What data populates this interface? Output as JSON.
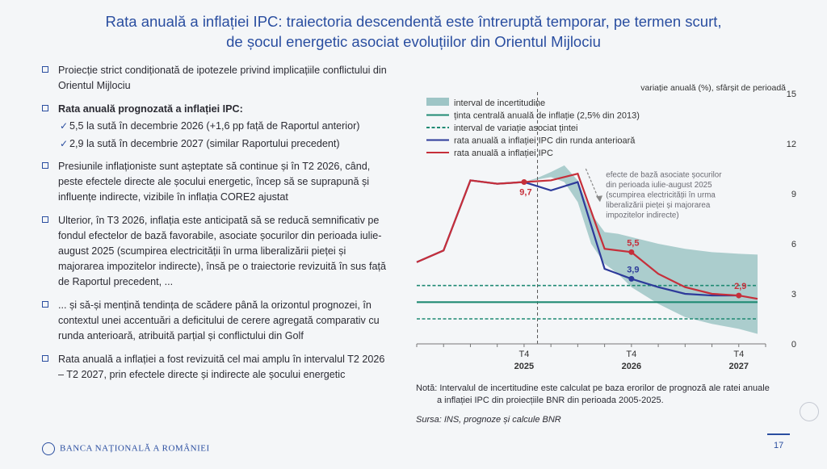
{
  "title": {
    "line1": "Rata anuală a inflației IPC: traiectoria descendentă este întreruptă temporar, pe termen scurt,",
    "line2": "de șocul energetic asociat evoluțiilor din Orientul Mijlociu"
  },
  "bullets": {
    "b1": "Proiecție strict condiționată de ipotezele privind implicațiile conflictului din Orientul Mijlociu",
    "b2": "Rata anuală prognozată a inflației IPC:",
    "b2_sub1": "5,5 la sută în decembrie 2026 (+1,6 pp față de Raportul anterior)",
    "b2_sub2": "2,9 la sută în decembrie 2027 (similar Raportului precedent)",
    "b3": "Presiunile inflaționiste sunt așteptate să continue și în T2 2026, când, peste efectele directe ale șocului energetic, încep să se suprapună și influențe indirecte, vizibile în inflația CORE2 ajustat",
    "b4": "Ulterior, în T3 2026, inflația este anticipată să se reducă semnificativ pe fondul efectelor de bază favorabile, asociate șocurilor din perioada iulie-august 2025 (scumpirea electricității în urma liberalizării pieței și majorarea impozitelor indirecte), însă pe o traiectorie revizuită în sus față de Raportul precedent, ...",
    "b5": "... și să-și mențină tendința de scădere până la orizontul prognozei, în contextul unei accentuări a deficitului de cerere agregată comparativ cu runda anterioară, atribuită parțial și conflictului din Golf",
    "b6": "Rata anuală a inflației a fost revizuită cel mai amplu în intervalul T2 2026 – T2 2027, prin efectele directe și indirecte ale șocului energetic"
  },
  "chart_data": {
    "type": "line",
    "ylabel": "variație anuală (%), sfârșit de perioadă",
    "ylim": [
      0,
      15
    ],
    "yticks": [
      0,
      3,
      6,
      9,
      12,
      15
    ],
    "x_tick_labels": [
      {
        "top": "T4",
        "bottom": "2025",
        "q": 4
      },
      {
        "top": "T4",
        "bottom": "2026",
        "q": 8
      },
      {
        "top": "T4",
        "bottom": "2027",
        "q": 12
      }
    ],
    "x_range_quarters": [
      0,
      13
    ],
    "forecast_start_q": 4,
    "target": 2.5,
    "target_band": [
      1.5,
      3.5
    ],
    "legend": {
      "uncertainty": "interval de incertitudine",
      "target": "ținta centrală anuală de inflație (2,5% din 2013)",
      "band": "interval de variație asociat țintei",
      "previous": "rata anuală a inflației IPC din runda anterioară",
      "current": "rata anuală a inflației IPC"
    },
    "uncertainty_band": {
      "x": [
        4,
        4.5,
        5,
        5.5,
        6,
        6.5,
        7,
        7.5,
        8,
        9,
        10,
        11,
        12,
        12.7
      ],
      "lower": [
        9.7,
        9.85,
        10.0,
        9.7,
        8.5,
        6.0,
        4.8,
        4.2,
        3.4,
        2.4,
        1.6,
        1.2,
        0.9,
        0.6
      ],
      "upper": [
        9.7,
        9.95,
        10.3,
        10.7,
        9.8,
        7.8,
        6.7,
        6.6,
        6.4,
        6.0,
        5.7,
        5.5,
        5.4,
        5.35
      ]
    },
    "series": [
      {
        "name": "rata anuală a inflației IPC din runda anterioară",
        "color": "#2d3a9a",
        "x": [
          0,
          1,
          2,
          3,
          4,
          5,
          6,
          7,
          8,
          9,
          10,
          11,
          12
        ],
        "values": [
          4.9,
          5.6,
          9.8,
          9.6,
          9.7,
          9.2,
          9.7,
          4.5,
          3.9,
          3.4,
          3.0,
          2.9,
          2.9
        ]
      },
      {
        "name": "rata anuală a inflației IPC",
        "color": "#c62f3a",
        "x": [
          0,
          1,
          2,
          3,
          4,
          5,
          6,
          7,
          8,
          9,
          10,
          11,
          12,
          12.7
        ],
        "values": [
          4.9,
          5.6,
          9.8,
          9.6,
          9.7,
          9.8,
          10.2,
          5.7,
          5.5,
          4.2,
          3.4,
          3.0,
          2.9,
          2.7
        ]
      }
    ],
    "data_labels": [
      {
        "text": "9,7",
        "x": 4,
        "y": 9.7,
        "series": 1
      },
      {
        "text": "5,5",
        "x": 8,
        "y": 5.5,
        "series": 1
      },
      {
        "text": "3,9",
        "x": 8,
        "y": 3.9,
        "series": 0
      },
      {
        "text": "2,9",
        "x": 12,
        "y": 2.9,
        "series": 1
      }
    ],
    "annotation": "efecte de bază asociate șocurilor din perioada iulie-august 2025 (scumpirea electricității în urma liberalizării pieței și majorarea impozitelor indirecte)",
    "colors": {
      "uncertainty": "#9ec5c6",
      "target": "#1f8a73",
      "band": "#1f8a73"
    }
  },
  "note": {
    "line1": "Notă: Intervalul de incertitudine este calculat pe baza erorilor de prognoză ale ratei anuale",
    "line2": "a inflației IPC din proiecțiile BNR din perioada 2005-2025."
  },
  "source": "Sursa: INS, prognoze și calcule BNR",
  "footer": {
    "logo_text": "BANCA NAȚIONALĂ A ROMÂNIEI",
    "page": "17"
  }
}
